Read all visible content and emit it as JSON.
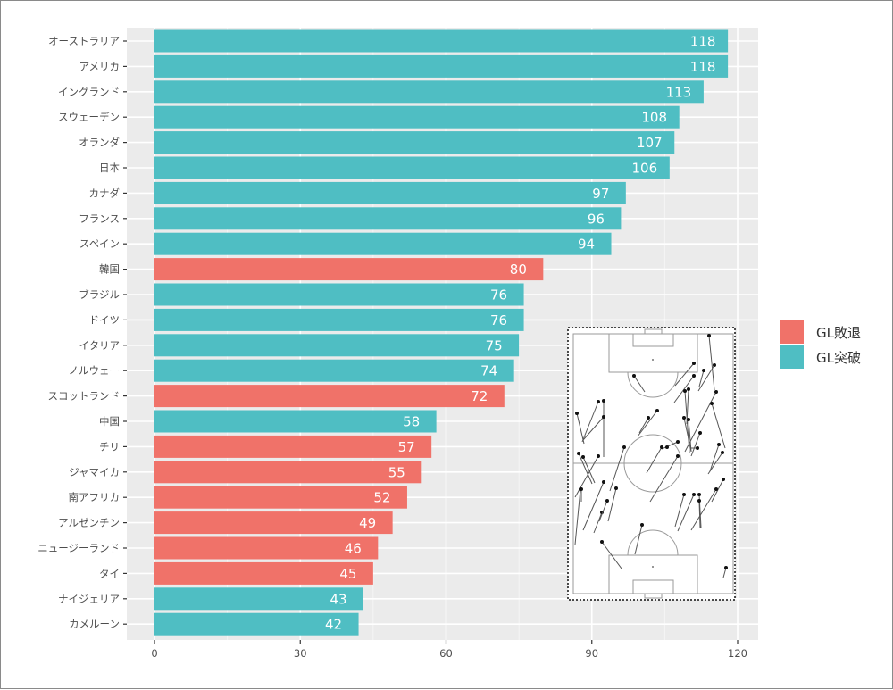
{
  "chart_data": {
    "type": "bar",
    "orientation": "horizontal",
    "title": "",
    "xlabel": "",
    "ylabel": "",
    "xlim": [
      0,
      124
    ],
    "x_ticks": [
      0,
      30,
      60,
      90,
      120
    ],
    "x_tick_labels": [
      "0",
      "30",
      "60",
      "90",
      "120"
    ],
    "grid": true,
    "legend_position": "right",
    "categories": [
      "オーストラリア",
      "アメリカ",
      "イングランド",
      "スウェーデン",
      "オランダ",
      "日本",
      "カナダ",
      "フランス",
      "スペイン",
      "韓国",
      "ブラジル",
      "ドイツ",
      "イタリア",
      "ノルウェー",
      "スコットランド",
      "中国",
      "チリ",
      "ジャマイカ",
      "南アフリカ",
      "アルゼンチン",
      "ニュージーランド",
      "タイ",
      "ナイジェリア",
      "カメルーン"
    ],
    "values": [
      118,
      118,
      113,
      108,
      107,
      106,
      97,
      96,
      94,
      80,
      76,
      76,
      75,
      74,
      72,
      58,
      57,
      55,
      52,
      49,
      46,
      45,
      43,
      42
    ],
    "groups": [
      "GL突破",
      "GL突破",
      "GL突破",
      "GL突破",
      "GL突破",
      "GL突破",
      "GL突破",
      "GL突破",
      "GL突破",
      "GL敗退",
      "GL突破",
      "GL突破",
      "GL突破",
      "GL突破",
      "GL敗退",
      "GL突破",
      "GL敗退",
      "GL敗退",
      "GL敗退",
      "GL敗退",
      "GL敗退",
      "GL敗退",
      "GL突破",
      "GL突破"
    ],
    "legend": [
      {
        "label": "GL敗退",
        "color": "#F07269"
      },
      {
        "label": "GL突破",
        "color": "#4FBEC3"
      }
    ]
  },
  "colors": {
    "panel_bg": "#EBEBEB",
    "grid": "#FFFFFF",
    "axis_text": "#4D4D4D",
    "bar_label": "#FFFFFF"
  },
  "inset": {
    "description": "soccer-pitch-pass-map"
  }
}
